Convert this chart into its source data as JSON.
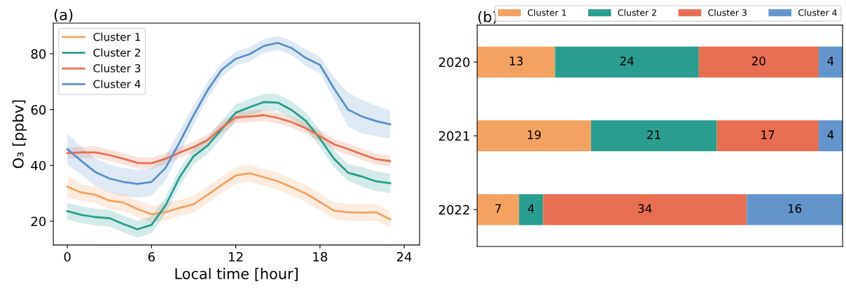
{
  "chart_data": [
    {
      "type": "line",
      "title": "(a)",
      "xlabel": "Local time [hour]",
      "ylabel": "O₃ [ppbv]",
      "x": [
        0,
        1,
        2,
        3,
        4,
        5,
        6,
        7,
        8,
        9,
        10,
        11,
        12,
        13,
        14,
        15,
        16,
        17,
        18,
        19,
        20,
        21,
        22,
        23
      ],
      "xlim": [
        -1,
        25.1
      ],
      "xticks": [
        0,
        6,
        12,
        18,
        24
      ],
      "ylim": [
        11.5,
        91
      ],
      "yticks": [
        20,
        40,
        60,
        80
      ],
      "grid": false,
      "legend": "top left",
      "line_style": "solid",
      "marker": "none",
      "series": [
        {
          "name": "Cluster 1",
          "color": "#f4a261",
          "values": [
            32.4,
            30.3,
            29.5,
            27.4,
            26.7,
            24.4,
            22.5,
            23.3,
            24.8,
            26.1,
            29.5,
            33,
            36.4,
            37.2,
            35.8,
            34.3,
            32.2,
            29.9,
            26.9,
            23.8,
            23.2,
            23.1,
            23.2,
            20.7
          ],
          "lower": [
            28.4,
            27.3,
            26.5,
            24.4,
            23.7,
            21.4,
            19.5,
            20.3,
            21.8,
            23.1,
            26.5,
            30,
            33.4,
            34.2,
            32.8,
            31.3,
            29.2,
            26.9,
            23.9,
            20.8,
            20.2,
            20.1,
            20.2,
            17.7
          ],
          "upper": [
            36.4,
            33.3,
            32.5,
            30.4,
            29.7,
            27.4,
            25.5,
            26.3,
            27.8,
            29.1,
            32.5,
            36,
            39.4,
            40.2,
            38.8,
            37.3,
            35.2,
            32.9,
            29.9,
            26.8,
            26.2,
            26.1,
            26.2,
            23.7
          ]
        },
        {
          "name": "Cluster 2",
          "color": "#2a9d8f",
          "values": [
            23.6,
            22.3,
            21.5,
            21.1,
            19.0,
            17.1,
            18.7,
            25.7,
            35.8,
            43.3,
            47.1,
            53,
            58.9,
            60.9,
            62.7,
            62.5,
            59.8,
            55.9,
            49.6,
            42.4,
            37.4,
            36,
            34.3,
            33.6
          ],
          "lower": [
            20.6,
            19.3,
            18.5,
            18.1,
            16.0,
            14.1,
            15.7,
            22.7,
            32.8,
            40.3,
            44.1,
            50,
            55.9,
            57.9,
            59.7,
            59.5,
            56.8,
            52.9,
            46.6,
            39.4,
            34.4,
            32.5,
            30.8,
            30.1
          ],
          "upper": [
            26.6,
            25.3,
            24.5,
            24.1,
            22.0,
            20.1,
            21.7,
            28.7,
            38.8,
            46.3,
            50.1,
            56,
            61.9,
            63.9,
            65.7,
            65.5,
            62.8,
            58.9,
            52.6,
            45.4,
            40.4,
            39.5,
            37.8,
            37.1
          ]
        },
        {
          "name": "Cluster 3",
          "color": "#e76f51",
          "values": [
            44.4,
            44.7,
            44.7,
            43.7,
            42.4,
            40.9,
            40.8,
            42.4,
            44.6,
            46.6,
            49.1,
            53.5,
            57.2,
            57.5,
            58,
            57,
            55.5,
            53.3,
            50.5,
            47.6,
            45.9,
            44,
            42.2,
            41.6
          ],
          "lower": [
            42.4,
            42.7,
            42.7,
            41.7,
            40.4,
            38.9,
            38.8,
            40.4,
            42.6,
            44.6,
            47.1,
            51.5,
            55.2,
            55.5,
            56,
            55,
            53.5,
            51.3,
            48.5,
            45.6,
            43.9,
            42,
            40.2,
            39.6
          ],
          "upper": [
            46.4,
            46.7,
            46.7,
            45.7,
            44.4,
            42.9,
            42.8,
            44.4,
            46.6,
            48.6,
            51.1,
            55.5,
            59.2,
            59.5,
            60,
            59,
            57.5,
            55.3,
            52.5,
            49.6,
            47.9,
            46,
            44.2,
            43.6
          ]
        },
        {
          "name": "Cluster 4",
          "color": "#5b8fc9",
          "values": [
            45.8,
            41.6,
            37.6,
            35.3,
            34.1,
            33.4,
            34.1,
            39.1,
            48.3,
            58,
            67,
            74.3,
            78.2,
            79.9,
            82.8,
            83.9,
            82,
            78.5,
            76,
            67.6,
            60,
            57.5,
            55.9,
            54.7
          ],
          "lower": [
            40.3,
            36.6,
            32.6,
            30.3,
            29.1,
            28.4,
            29.1,
            34.6,
            44.3,
            54.5,
            64,
            71.8,
            75.7,
            77.4,
            80.3,
            81.4,
            79.5,
            75.5,
            73,
            63.6,
            54,
            51.5,
            50.4,
            49.7
          ],
          "upper": [
            51.3,
            46.6,
            42.6,
            40.3,
            39.1,
            38.4,
            39.1,
            43.6,
            52.3,
            61.5,
            70,
            76.8,
            80.7,
            82.4,
            85.3,
            86.4,
            84.5,
            81.5,
            79,
            71.6,
            66,
            63.5,
            61.4,
            59.7
          ]
        }
      ]
    },
    {
      "type": "bar",
      "title": "(b)",
      "orientation": "horizontal",
      "stacked": true,
      "data_labels": true,
      "categories": [
        "2020",
        "2021",
        "2022"
      ],
      "tick_labels": "y",
      "legend": "top",
      "grid": false,
      "series": [
        {
          "name": "Cluster 1",
          "color": "#f4a261",
          "values": [
            13,
            19,
            7
          ]
        },
        {
          "name": "Cluster 2",
          "color": "#2a9d8f",
          "values": [
            24,
            21,
            4
          ]
        },
        {
          "name": "Cluster 3",
          "color": "#e76f51",
          "values": [
            20,
            17,
            34
          ]
        },
        {
          "name": "Cluster 4",
          "color": "#6395cd",
          "values": [
            4,
            4,
            16
          ]
        }
      ]
    }
  ]
}
